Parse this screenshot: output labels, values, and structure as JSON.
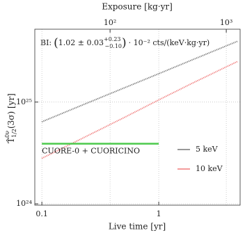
{
  "chart_data": {
    "type": "line",
    "xlabel": "Live time [yr]",
    "x2label": "Exposure [kg·yr]",
    "ylabel": {
      "base": "T̂",
      "sup": "0ν",
      "sub": "1/2",
      "rest": "(3σ) [yr]"
    },
    "annotation": {
      "prefix": "BI:",
      "open": "(",
      "value": "1.02 ± 0.03",
      "upper": "+0.23",
      "lower": "−0.10",
      "close": ")",
      "suffix": "· 10⁻² cts/(keV·kg·yr)"
    },
    "log_x": true,
    "log_y": true,
    "grid": true,
    "xlim": [
      0.087,
      4.97
    ],
    "xticks": [
      0.1,
      1
    ],
    "x2lim": [
      22.5,
      1316
    ],
    "x2ticks": [
      {
        "value": 100,
        "label": "10²"
      },
      {
        "value": 1000,
        "label": "10³"
      }
    ],
    "ylim": [
      9.7e+23,
      5.2e+25
    ],
    "yticks": [
      {
        "value": 1e+24,
        "label": "10²⁴"
      },
      {
        "value": 1e+25,
        "label": "10²⁵"
      }
    ],
    "x": [
      0.1,
      0.2,
      0.5,
      1,
      2,
      4.7
    ],
    "series": [
      {
        "name": "5 keV",
        "color": "#777777",
        "values": [
          6.4e+24,
          8.9e+24,
          1.37e+25,
          1.9e+25,
          2.64e+25,
          3.95e+25
        ]
      },
      {
        "name": "10 keV",
        "color": "#f07b7b",
        "values": [
          2.8e+24,
          4.15e+24,
          7e+24,
          1.05e+25,
          1.56e+25,
          2.5e+25
        ]
      }
    ],
    "reference": {
      "name": "CUORE-0 + CUORICINO",
      "color": "#4cc94c",
      "value": 3.9e+24,
      "x": [
        0.1,
        1
      ]
    },
    "legend": "lower right"
  }
}
